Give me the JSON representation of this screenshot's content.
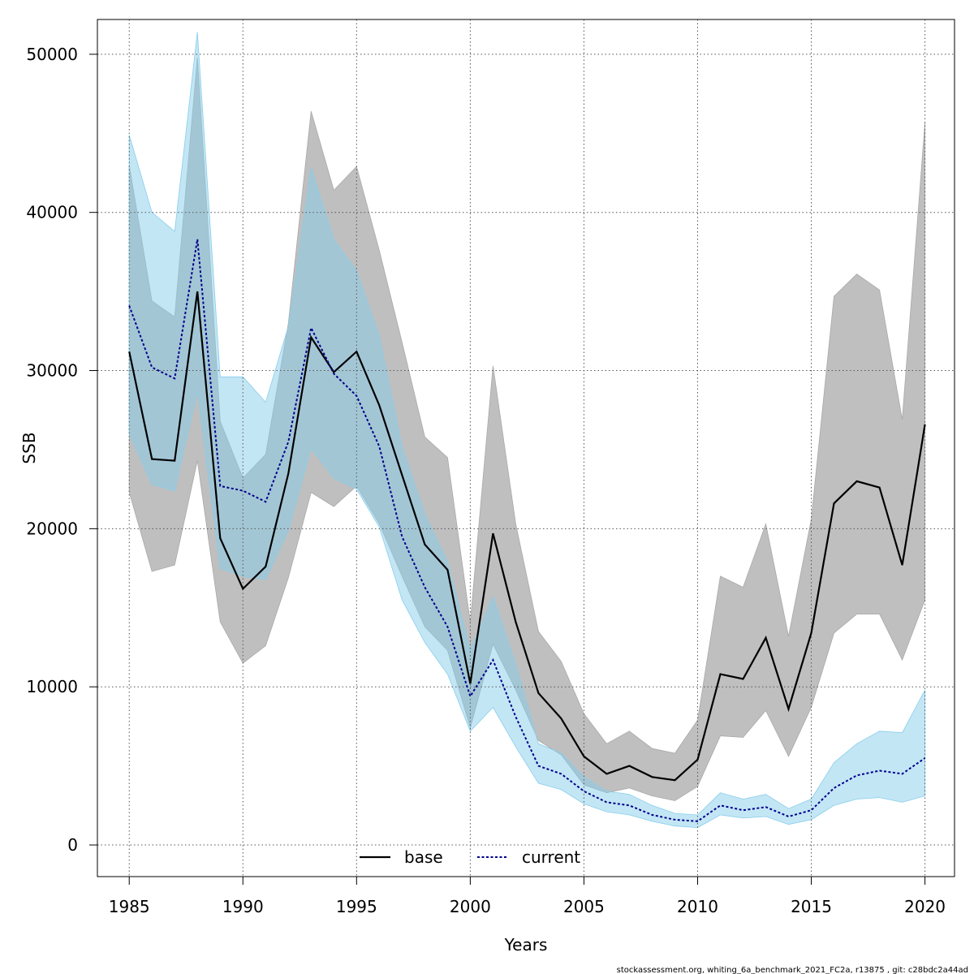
{
  "chart_data": {
    "type": "area",
    "title": "",
    "xlabel": "Years",
    "ylabel": "SSB",
    "xlim": [
      1983.6,
      2021.3
    ],
    "ylim": [
      -2000,
      52200
    ],
    "xticks": [
      1985,
      1990,
      1995,
      2000,
      2005,
      2010,
      2015,
      2020
    ],
    "yticks": [
      0,
      10000,
      20000,
      30000,
      40000,
      50000
    ],
    "grid": true,
    "legend": {
      "placement": "bottom-center",
      "entries": [
        "base",
        "current"
      ]
    },
    "footer": "stockassessment.org, whiting_6a_benchmark_2021_FC2a, r13875 , git: c28bdc2a44ad",
    "colors": {
      "base_line": "#000000",
      "base_band": "#a9a9a9",
      "current_line": "#00008b",
      "current_band": "#87ceeb",
      "grid": "#555555"
    },
    "x": [
      1985,
      1986,
      1987,
      1988,
      1989,
      1990,
      1991,
      1992,
      1993,
      1994,
      1995,
      1996,
      1997,
      1998,
      1999,
      2000,
      2001,
      2002,
      2003,
      2004,
      2005,
      2006,
      2007,
      2008,
      2009,
      2010,
      2011,
      2012,
      2013,
      2014,
      2015,
      2016,
      2017,
      2018,
      2019,
      2020
    ],
    "series": [
      {
        "name": "base",
        "values": [
          31200,
          24400,
          24300,
          35000,
          19400,
          16200,
          17600,
          23500,
          32100,
          29900,
          31200,
          27800,
          23400,
          19000,
          17400,
          10200,
          19700,
          14100,
          9600,
          8000,
          5600,
          4500,
          5000,
          4300,
          4100,
          5400,
          10800,
          10500,
          13100,
          8600,
          13400,
          21600,
          23000,
          22600,
          17700,
          26600
        ],
        "lower": [
          22300,
          17300,
          17700,
          24300,
          14100,
          11500,
          12600,
          16900,
          22300,
          21400,
          22700,
          20300,
          17000,
          13800,
          12300,
          7400,
          12700,
          9800,
          6600,
          5700,
          3800,
          3300,
          3600,
          3100,
          2800,
          3700,
          6900,
          6800,
          8500,
          5600,
          8700,
          13400,
          14600,
          14600,
          11700,
          15500
        ],
        "upper": [
          43000,
          34400,
          33400,
          49800,
          26800,
          23200,
          24700,
          33000,
          46400,
          41400,
          42900,
          37600,
          31800,
          25800,
          24500,
          14100,
          30300,
          20300,
          13500,
          11600,
          8300,
          6400,
          7200,
          6100,
          5800,
          7900,
          17000,
          16300,
          20300,
          13200,
          20600,
          34700,
          36100,
          35100,
          26900,
          45700
        ]
      },
      {
        "name": "current",
        "values": [
          34100,
          30200,
          29500,
          38300,
          22700,
          22400,
          21700,
          25500,
          32700,
          29800,
          28400,
          25200,
          19500,
          16300,
          13800,
          9400,
          11700,
          8100,
          5000,
          4500,
          3400,
          2700,
          2500,
          1900,
          1600,
          1500,
          2500,
          2200,
          2400,
          1800,
          2200,
          3600,
          4400,
          4700,
          4500,
          5500
        ],
        "lower": [
          26000,
          22800,
          22400,
          28700,
          17500,
          17000,
          16800,
          19900,
          25100,
          23200,
          22500,
          20100,
          15500,
          12800,
          10800,
          7200,
          8700,
          6200,
          3900,
          3500,
          2600,
          2100,
          1900,
          1500,
          1200,
          1100,
          1900,
          1700,
          1800,
          1300,
          1600,
          2500,
          2900,
          3000,
          2700,
          3100
        ],
        "upper": [
          44900,
          40000,
          38800,
          51400,
          29600,
          29600,
          28000,
          32800,
          42800,
          38300,
          36300,
          32200,
          25200,
          20900,
          17900,
          12300,
          15700,
          11400,
          6400,
          5800,
          4300,
          3400,
          3200,
          2500,
          2000,
          1900,
          3300,
          2900,
          3200,
          2300,
          2900,
          5200,
          6400,
          7200,
          7100,
          9800
        ]
      }
    ]
  }
}
